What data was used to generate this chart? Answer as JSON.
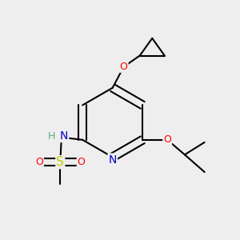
{
  "bg_color": "#eeeeee",
  "atom_colors": {
    "C": "#000000",
    "N": "#0000cc",
    "O": "#ff0000",
    "S": "#cccc00",
    "H": "#5aaa8a"
  },
  "bond_color": "#000000",
  "bond_width": 1.5
}
